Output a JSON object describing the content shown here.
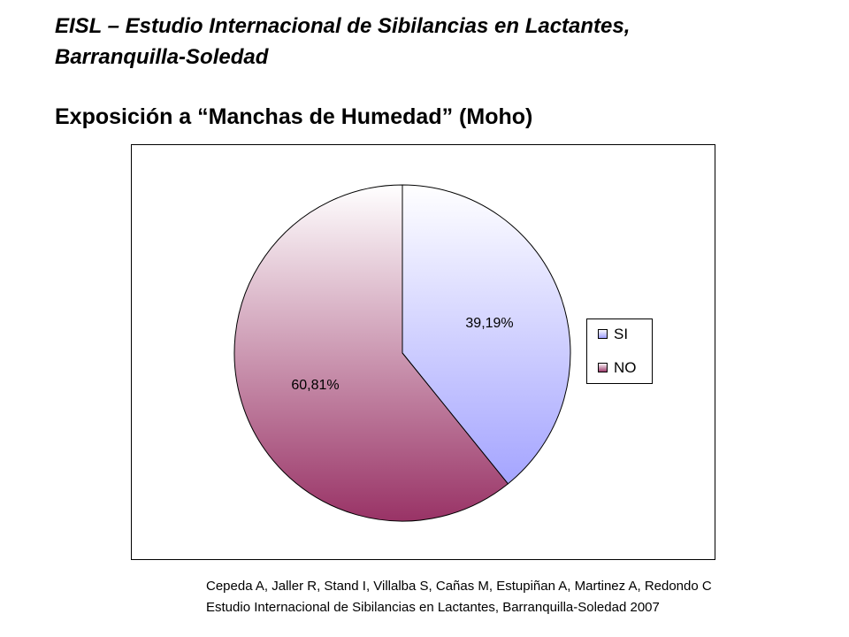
{
  "header": {
    "title_lines": [
      "EISL – Estudio Internacional de Sibilancias en Lactantes,",
      "Barranquilla-Soledad"
    ],
    "subtitle": "Exposición a “Manchas de Humedad”  (Moho)"
  },
  "chart_data": {
    "type": "pie",
    "categories": [
      "SI",
      "NO"
    ],
    "values": [
      39.19,
      60.81
    ],
    "value_labels": [
      "39,19%",
      "60,81%"
    ],
    "colors": [
      "#9999ff",
      "#993366"
    ],
    "legend": "right"
  },
  "footer": {
    "lines": [
      "Cepeda A, Jaller R, Stand I, Villalba S, Cañas M, Estupiñan A, Martinez A, Redondo C",
      "Estudio Internacional de Sibilancias en Lactantes, Barranquilla-Soledad 2007"
    ]
  }
}
